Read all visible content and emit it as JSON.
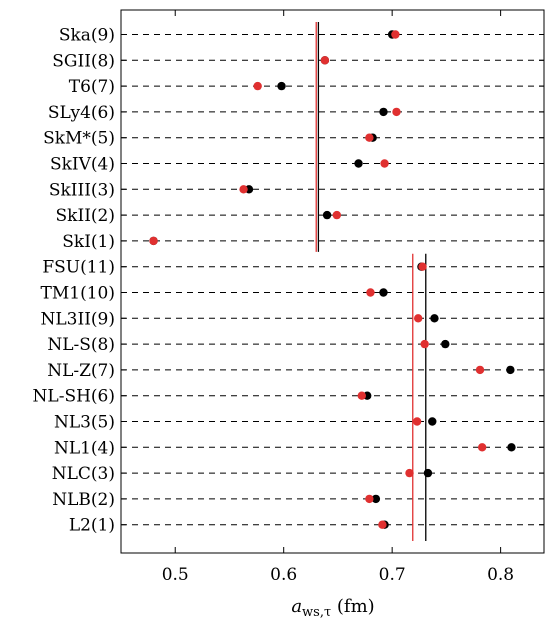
{
  "chart_data": {
    "type": "scatter",
    "xlabel": "a_ws,τ (fm)",
    "xlim": [
      0.45,
      0.84
    ],
    "xticks": [
      "0.5",
      "0.6",
      "0.7",
      "0.8"
    ],
    "xtick_values": [
      0.5,
      0.6,
      0.7,
      0.8
    ],
    "categories": [
      "Ska(9)",
      "SGII(8)",
      "T6(7)",
      "SLy4(6)",
      "SkM*(5)",
      "SkIV(4)",
      "SkIII(3)",
      "SkII(2)",
      "SkI(1)",
      "FSU(11)",
      "TM1(10)",
      "NL3II(9)",
      "NL-S(8)",
      "NL-Z(7)",
      "NL-SH(6)",
      "NL3(5)",
      "NL1(4)",
      "NLC(3)",
      "NLB(2)",
      "L2(1)"
    ],
    "grid": "horizontal-dashed",
    "series": [
      {
        "color": "#000000",
        "values": [
          0.7,
          0.638,
          0.598,
          0.692,
          0.682,
          0.669,
          0.568,
          0.64,
          0.48,
          0.727,
          0.692,
          0.739,
          0.749,
          0.809,
          0.677,
          0.737,
          0.81,
          0.733,
          0.685,
          0.693
        ]
      },
      {
        "color": "#e03030",
        "values": [
          0.703,
          0.638,
          0.576,
          0.704,
          0.679,
          0.693,
          0.563,
          0.649,
          0.48,
          0.728,
          0.68,
          0.724,
          0.73,
          0.781,
          0.672,
          0.723,
          0.783,
          0.716,
          0.679,
          0.691
        ]
      }
    ],
    "reference_lines": [
      {
        "color": "#000000",
        "x": 0.632,
        "group": "skyrme"
      },
      {
        "color": "#e03030",
        "x": 0.63,
        "group": "skyrme"
      },
      {
        "color": "#000000",
        "x": 0.731,
        "group": "rmf"
      },
      {
        "color": "#e03030",
        "x": 0.719,
        "group": "rmf"
      }
    ]
  }
}
